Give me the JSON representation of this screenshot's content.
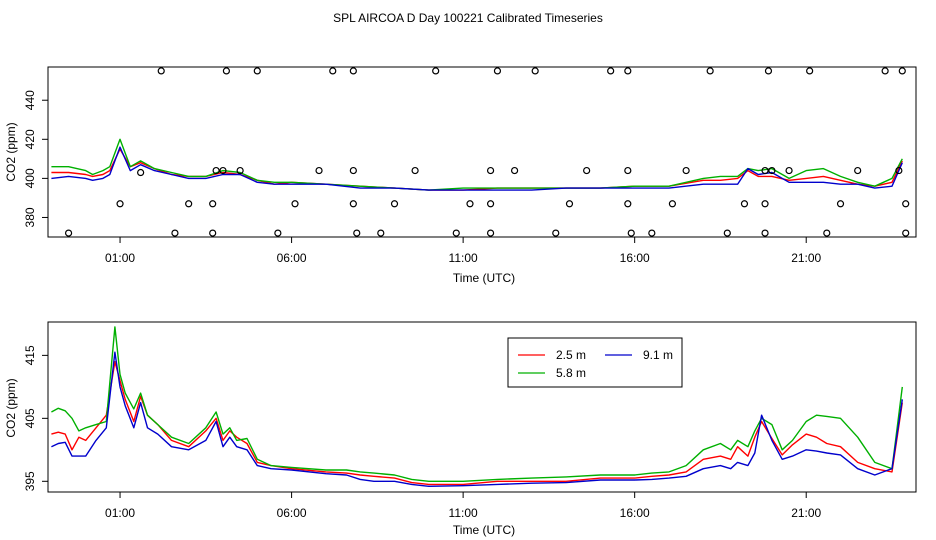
{
  "title": "SPL AIRCOA D  Day 100221  Calibrated Timeseries",
  "chart_data": [
    {
      "id": "top",
      "type": "line",
      "xlabel": "Time (UTC)",
      "ylabel": "CO2 (ppm)",
      "xlim": [
        -1.1,
        24.2
      ],
      "ylim": [
        370,
        457
      ],
      "xticks": [
        1,
        6,
        11,
        16,
        21
      ],
      "xtick_labels": [
        "01:00",
        "06:00",
        "11:00",
        "16:00",
        "21:00"
      ],
      "yticks": [
        380,
        400,
        420,
        440
      ],
      "ytick_labels": [
        "380",
        "400",
        "420",
        "440"
      ],
      "series": [
        {
          "name": "2.5 m",
          "color": "#ff0000",
          "x": [
            -1,
            -0.5,
            0,
            0.2,
            0.5,
            0.7,
            1.0,
            1.3,
            1.6,
            2,
            2.5,
            3,
            3.5,
            4,
            4.5,
            5,
            5.5,
            6,
            7,
            8,
            9,
            10,
            11,
            12,
            13,
            14,
            15,
            16,
            17,
            18,
            18.5,
            19,
            19.3,
            19.6,
            20,
            20.5,
            21,
            21.5,
            22,
            22.5,
            23,
            23.5,
            23.8
          ],
          "y": [
            403,
            403,
            402,
            401,
            402,
            404,
            415,
            406,
            408,
            405,
            402,
            401,
            401,
            403,
            402,
            399,
            397,
            398,
            397,
            396,
            395,
            394,
            394,
            395,
            395,
            395,
            395,
            396,
            396,
            399,
            399,
            400,
            404,
            401,
            401,
            399,
            400,
            401,
            399,
            397,
            396,
            398,
            409
          ]
        },
        {
          "name": "5.8 m",
          "color": "#00b000",
          "x": [
            -1,
            -0.5,
            0,
            0.2,
            0.5,
            0.7,
            1.0,
            1.3,
            1.6,
            2,
            2.5,
            3,
            3.5,
            4,
            4.5,
            5,
            5.5,
            6,
            7,
            8,
            9,
            10,
            11,
            12,
            13,
            14,
            15,
            16,
            17,
            18,
            18.5,
            19,
            19.3,
            19.6,
            20,
            20.5,
            21,
            21.5,
            22,
            22.5,
            23,
            23.5,
            23.8
          ],
          "y": [
            406,
            406,
            404,
            402,
            404,
            406,
            420,
            406,
            409,
            405,
            403,
            401,
            401,
            404,
            403,
            399,
            398,
            398,
            397,
            396,
            395,
            394,
            395,
            395,
            395,
            395,
            395,
            396,
            396,
            400,
            401,
            401,
            405,
            404,
            405,
            400,
            404,
            405,
            401,
            398,
            396,
            400,
            410
          ]
        },
        {
          "name": "9.1 m",
          "color": "#0000cc",
          "x": [
            -1,
            -0.5,
            0,
            0.2,
            0.5,
            0.7,
            1.0,
            1.3,
            1.6,
            2,
            2.5,
            3,
            3.5,
            4,
            4.5,
            5,
            5.5,
            6,
            7,
            8,
            9,
            10,
            11,
            12,
            13,
            14,
            15,
            16,
            17,
            18,
            18.5,
            19,
            19.3,
            19.6,
            20,
            20.5,
            21,
            21.5,
            22,
            22.5,
            23,
            23.5,
            23.8
          ],
          "y": [
            400,
            401,
            400,
            399,
            400,
            402,
            416,
            404,
            407,
            404,
            402,
            400,
            400,
            402,
            402,
            398,
            397,
            397,
            397,
            395,
            395,
            394,
            394,
            394,
            394,
            395,
            395,
            395,
            395,
            397,
            397,
            397,
            405,
            402,
            403,
            398,
            398,
            398,
            397,
            397,
            395,
            396,
            408
          ]
        }
      ],
      "flags": [
        {
          "x": 2.2,
          "y": 455
        },
        {
          "x": 4.1,
          "y": 455
        },
        {
          "x": 5.0,
          "y": 455
        },
        {
          "x": 7.2,
          "y": 455
        },
        {
          "x": 7.8,
          "y": 455
        },
        {
          "x": 10.2,
          "y": 455
        },
        {
          "x": 12.0,
          "y": 455
        },
        {
          "x": 13.1,
          "y": 455
        },
        {
          "x": 15.3,
          "y": 455
        },
        {
          "x": 15.8,
          "y": 455
        },
        {
          "x": 18.2,
          "y": 455
        },
        {
          "x": 19.9,
          "y": 455
        },
        {
          "x": 21.1,
          "y": 455
        },
        {
          "x": 23.3,
          "y": 455
        },
        {
          "x": 23.8,
          "y": 455
        },
        {
          "x": 1.6,
          "y": 403
        },
        {
          "x": 3.8,
          "y": 404
        },
        {
          "x": 4.0,
          "y": 404
        },
        {
          "x": 4.5,
          "y": 404
        },
        {
          "x": 6.8,
          "y": 404
        },
        {
          "x": 7.8,
          "y": 404
        },
        {
          "x": 9.6,
          "y": 404
        },
        {
          "x": 11.8,
          "y": 404
        },
        {
          "x": 12.5,
          "y": 404
        },
        {
          "x": 14.6,
          "y": 404
        },
        {
          "x": 15.8,
          "y": 404
        },
        {
          "x": 17.5,
          "y": 404
        },
        {
          "x": 19.8,
          "y": 404
        },
        {
          "x": 20.0,
          "y": 404
        },
        {
          "x": 20.5,
          "y": 404
        },
        {
          "x": 22.5,
          "y": 404
        },
        {
          "x": 23.7,
          "y": 404
        },
        {
          "x": 1.0,
          "y": 387
        },
        {
          "x": 3.0,
          "y": 387
        },
        {
          "x": 3.7,
          "y": 387
        },
        {
          "x": 6.1,
          "y": 387
        },
        {
          "x": 7.8,
          "y": 387
        },
        {
          "x": 9.0,
          "y": 387
        },
        {
          "x": 11.2,
          "y": 387
        },
        {
          "x": 11.8,
          "y": 387
        },
        {
          "x": 14.1,
          "y": 387
        },
        {
          "x": 15.8,
          "y": 387
        },
        {
          "x": 17.1,
          "y": 387
        },
        {
          "x": 19.2,
          "y": 387
        },
        {
          "x": 19.8,
          "y": 387
        },
        {
          "x": 22.0,
          "y": 387
        },
        {
          "x": 23.9,
          "y": 387
        },
        {
          "x": -0.5,
          "y": 372
        },
        {
          "x": 2.6,
          "y": 372
        },
        {
          "x": 3.7,
          "y": 372
        },
        {
          "x": 5.6,
          "y": 372
        },
        {
          "x": 7.9,
          "y": 372
        },
        {
          "x": 8.6,
          "y": 372
        },
        {
          "x": 10.8,
          "y": 372
        },
        {
          "x": 11.8,
          "y": 372
        },
        {
          "x": 13.7,
          "y": 372
        },
        {
          "x": 15.9,
          "y": 372
        },
        {
          "x": 16.5,
          "y": 372
        },
        {
          "x": 18.7,
          "y": 372
        },
        {
          "x": 19.8,
          "y": 372
        },
        {
          "x": 21.6,
          "y": 372
        },
        {
          "x": 23.9,
          "y": 372
        }
      ]
    },
    {
      "id": "bottom",
      "type": "line",
      "xlabel": "Time (UTC)",
      "ylabel": "CO2 (ppm)",
      "xlim": [
        -1.1,
        24.2
      ],
      "ylim": [
        393.3,
        420.3
      ],
      "xticks": [
        1,
        6,
        11,
        16,
        21
      ],
      "xtick_labels": [
        "01:00",
        "06:00",
        "11:00",
        "16:00",
        "21:00"
      ],
      "yticks": [
        395,
        405,
        415
      ],
      "ytick_labels": [
        "395",
        "405",
        "415"
      ],
      "legend": {
        "position": "top-right",
        "entries": [
          "2.5 m",
          "5.8 m",
          "9.1 m"
        ]
      },
      "series": [
        {
          "name": "2.5 m",
          "color": "#ff0000",
          "x": [
            -1,
            -0.8,
            -0.6,
            -0.4,
            -0.2,
            0,
            0.3,
            0.6,
            0.85,
            1.0,
            1.15,
            1.4,
            1.6,
            1.8,
            2.1,
            2.5,
            3,
            3.5,
            3.8,
            4.0,
            4.2,
            4.4,
            4.7,
            5,
            5.4,
            6,
            7,
            7.6,
            8,
            8.4,
            9,
            9.5,
            10,
            11,
            12,
            13,
            14,
            15,
            16,
            16.5,
            17,
            17.5,
            18,
            18.5,
            18.8,
            19.0,
            19.3,
            19.5,
            19.7,
            20,
            20.3,
            20.6,
            21,
            21.3,
            21.6,
            22,
            22.5,
            23,
            23.5,
            23.8
          ],
          "y": [
            402.5,
            402.8,
            402.5,
            400,
            402,
            401.5,
            403.5,
            405.5,
            414,
            411,
            408,
            404.5,
            408.5,
            405.5,
            404,
            401.5,
            400.5,
            403,
            405,
            401.5,
            403,
            402,
            401,
            398,
            397.5,
            397,
            396.5,
            396.3,
            396,
            395.8,
            395.5,
            394.8,
            394.5,
            394.5,
            395,
            395,
            395,
            395.5,
            395.5,
            395.8,
            396,
            396.5,
            398.5,
            399,
            398.5,
            400.5,
            399,
            402,
            404.5,
            401.8,
            399.2,
            400.8,
            402.5,
            402,
            401,
            400.5,
            398,
            397,
            396.5,
            407.5
          ]
        },
        {
          "name": "5.8 m",
          "color": "#00b000",
          "x": [
            -1,
            -0.8,
            -0.6,
            -0.4,
            -0.2,
            0,
            0.3,
            0.6,
            0.85,
            1.0,
            1.15,
            1.4,
            1.6,
            1.8,
            2.1,
            2.5,
            3,
            3.5,
            3.8,
            4.0,
            4.2,
            4.4,
            4.7,
            5,
            5.4,
            6,
            7,
            7.6,
            8,
            8.4,
            9,
            9.5,
            10,
            11,
            12,
            13,
            14,
            15,
            16,
            16.5,
            17,
            17.5,
            18,
            18.5,
            18.8,
            19.0,
            19.3,
            19.5,
            19.7,
            20,
            20.3,
            20.6,
            21,
            21.3,
            21.6,
            22,
            22.5,
            23,
            23.5,
            23.8
          ],
          "y": [
            406,
            406.6,
            406.2,
            405,
            403,
            403.5,
            404,
            404.5,
            419.5,
            412,
            409,
            406.5,
            409,
            405.5,
            404,
            402,
            401,
            403.5,
            406,
            402.5,
            403.5,
            401.5,
            401.8,
            398.5,
            397.5,
            397.2,
            396.8,
            396.8,
            396.5,
            396.3,
            396,
            395.3,
            395,
            395,
            395.3,
            395.5,
            395.7,
            396,
            396,
            396.3,
            396.5,
            397.5,
            400,
            401,
            400,
            401.5,
            400.5,
            403,
            405,
            404,
            400,
            401.5,
            404.5,
            405.5,
            405.3,
            405,
            402,
            398,
            397,
            410
          ]
        },
        {
          "name": "9.1 m",
          "color": "#0000cc",
          "x": [
            -1,
            -0.8,
            -0.6,
            -0.4,
            -0.2,
            0,
            0.3,
            0.6,
            0.85,
            1.0,
            1.15,
            1.4,
            1.6,
            1.8,
            2.1,
            2.5,
            3,
            3.5,
            3.8,
            4.0,
            4.2,
            4.4,
            4.7,
            5,
            5.4,
            6,
            7,
            7.6,
            8,
            8.4,
            9,
            9.5,
            10,
            11,
            12,
            13,
            14,
            15,
            16,
            16.5,
            17,
            17.5,
            18,
            18.5,
            18.8,
            19.0,
            19.3,
            19.5,
            19.7,
            20,
            20.3,
            20.6,
            21,
            21.3,
            21.6,
            22,
            22.5,
            23,
            23.5,
            23.8
          ],
          "y": [
            400.5,
            401,
            401.2,
            399,
            399,
            399,
            401.5,
            403.5,
            415.5,
            410,
            407,
            403.5,
            407.5,
            403.5,
            402.5,
            400.5,
            400,
            401.5,
            404.5,
            400.5,
            402,
            400.5,
            400,
            397.5,
            397,
            396.8,
            396.2,
            396,
            395.3,
            395,
            395,
            394.5,
            394.2,
            394.3,
            394.5,
            394.7,
            394.8,
            395.2,
            395.2,
            395.3,
            395.5,
            395.8,
            397,
            397.5,
            397,
            398,
            397.5,
            399.5,
            405.5,
            401.5,
            398.5,
            399,
            400,
            399.8,
            399.5,
            399.2,
            397,
            396,
            397,
            408
          ]
        }
      ]
    }
  ]
}
